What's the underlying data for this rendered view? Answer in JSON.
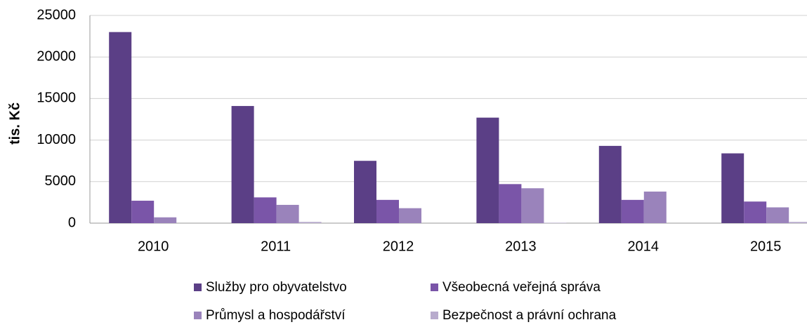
{
  "chart_data": {
    "type": "bar",
    "ylabel": "tis. Kč",
    "categories": [
      "2010",
      "2011",
      "2012",
      "2013",
      "2014",
      "2015"
    ],
    "series": [
      {
        "name": "Služby pro obyvatelstvo",
        "color": "#5b3f86",
        "values": [
          23000,
          14100,
          7500,
          12700,
          9300,
          8400
        ]
      },
      {
        "name": "Všeobecná veřejná správa",
        "color": "#7a55a8",
        "values": [
          2700,
          3100,
          2800,
          4700,
          2800,
          2600
        ]
      },
      {
        "name": "Průmysl a hospodářství",
        "color": "#9a83bb",
        "values": [
          700,
          2200,
          1800,
          4200,
          3800,
          1900
        ]
      },
      {
        "name": "Bezpečnost a právní ochrana",
        "color": "#b8abcd",
        "values": [
          0,
          150,
          0,
          50,
          0,
          150
        ]
      }
    ],
    "ylim": [
      0,
      25000
    ],
    "yticks": [
      0,
      5000,
      10000,
      15000,
      20000,
      25000
    ],
    "grid": true
  }
}
